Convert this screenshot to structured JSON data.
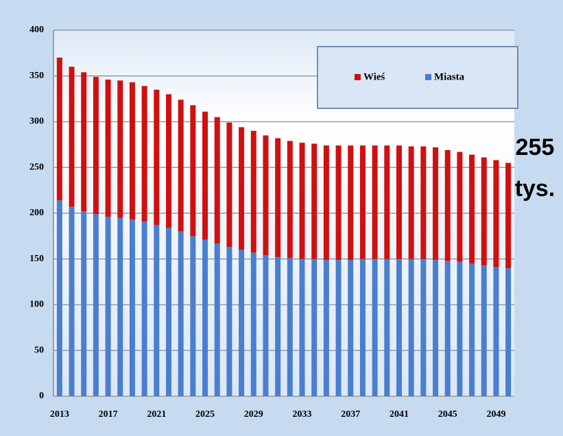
{
  "chart_data": {
    "type": "bar",
    "stacked": true,
    "categories": [
      "2013",
      null,
      null,
      null,
      "2017",
      null,
      null,
      null,
      "2021",
      null,
      null,
      null,
      "2025",
      null,
      null,
      null,
      "2029",
      null,
      null,
      null,
      "2033",
      null,
      null,
      null,
      "2037",
      null,
      null,
      null,
      "2041",
      null,
      null,
      null,
      "2045",
      null,
      null,
      null,
      "2049",
      null
    ],
    "series": [
      {
        "name": "Miasta",
        "color": "#4a7ed0",
        "values": [
          214,
          207,
          202,
          199,
          196,
          195,
          193,
          191,
          187,
          184,
          180,
          175,
          171,
          167,
          163,
          160,
          157,
          154,
          152,
          151,
          150,
          150,
          149,
          149,
          149,
          150,
          150,
          150,
          150,
          150,
          150,
          149,
          148,
          147,
          145,
          143,
          141,
          140
        ]
      },
      {
        "name": "Wieś",
        "color": "#d01010",
        "values": [
          156,
          153,
          152,
          150,
          150,
          150,
          150,
          148,
          148,
          146,
          144,
          143,
          140,
          138,
          136,
          134,
          133,
          131,
          130,
          128,
          127,
          126,
          125,
          125,
          125,
          124,
          124,
          124,
          124,
          123,
          123,
          123,
          121,
          120,
          119,
          118,
          117,
          115
        ]
      }
    ],
    "ylim": [
      0,
      400
    ],
    "yticks": [
      0,
      50,
      100,
      150,
      200,
      250,
      300,
      350,
      400
    ],
    "grid": true,
    "legend": "top-right",
    "annotation": [
      "255",
      "tys."
    ]
  }
}
